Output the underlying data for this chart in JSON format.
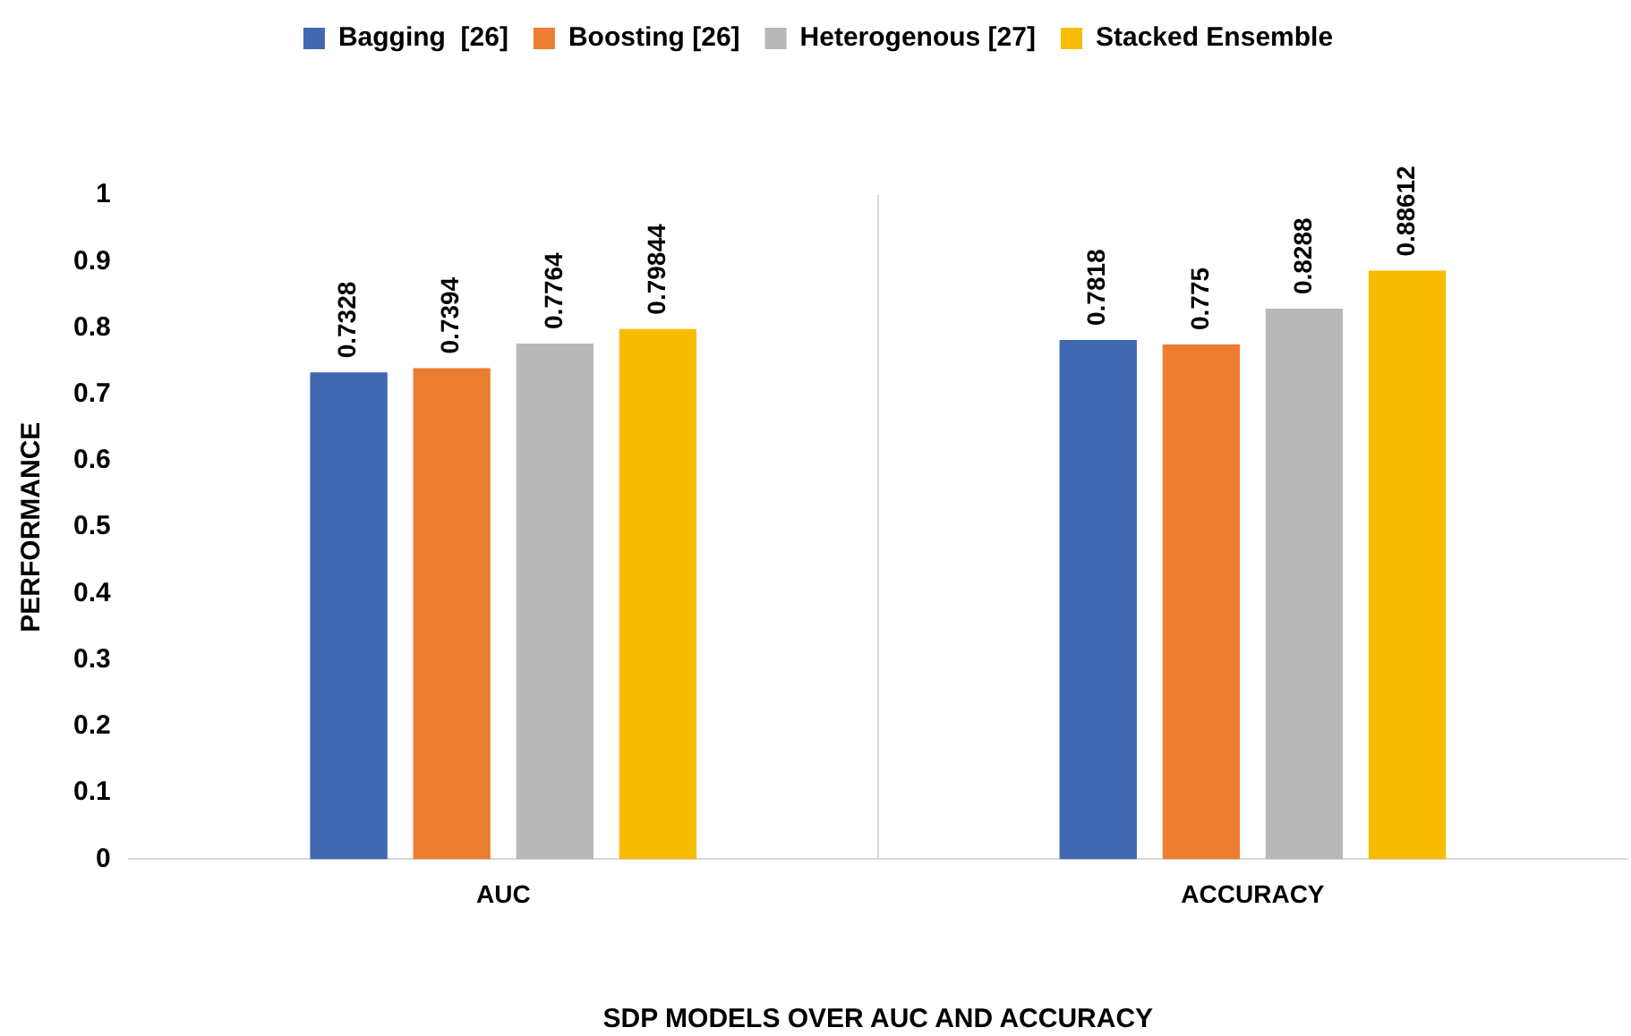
{
  "chart_data": {
    "type": "bar",
    "xlabel": "SDP MODELS OVER AUC AND ACCURACY",
    "ylabel": "PERFORMANCE",
    "categories": [
      "AUC",
      "ACCURACY"
    ],
    "series": [
      {
        "name": "Bagging  [26]",
        "color": "#4068b0",
        "values": [
          0.7328,
          0.7818
        ]
      },
      {
        "name": "Boosting [26]",
        "color": "#ed7d31",
        "values": [
          0.7394,
          0.775
        ]
      },
      {
        "name": "Heterogenous [27]",
        "color": "#b8b8b8",
        "values": [
          0.7764,
          0.8288
        ]
      },
      {
        "name": "Stacked Ensemble",
        "color": "#f8bc00",
        "values": [
          0.79844,
          0.88612
        ]
      }
    ],
    "ylim": [
      0,
      1
    ],
    "yticks": [
      0,
      0.1,
      0.2,
      0.3,
      0.4,
      0.5,
      0.6,
      0.7,
      0.8,
      0.9,
      1
    ],
    "grid": "x",
    "legend": "top",
    "data_labels": true
  }
}
